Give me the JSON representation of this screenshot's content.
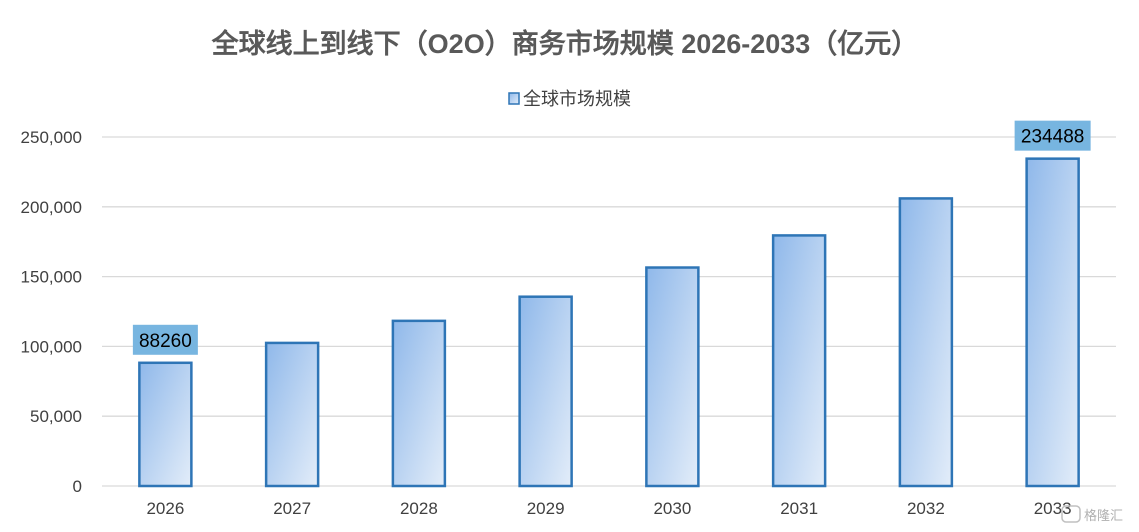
{
  "chart_data": {
    "type": "bar",
    "title": "全球线上到线下（O2O）商务市场规模 2026-2033（亿元）",
    "legend": {
      "position": "top-center",
      "entries": [
        "全球市场规模"
      ]
    },
    "categories": [
      "2026",
      "2027",
      "2028",
      "2029",
      "2030",
      "2031",
      "2032",
      "2033"
    ],
    "series": [
      {
        "name": "全球市场规模",
        "values": [
          88260,
          102500,
          118300,
          135600,
          156500,
          179500,
          206000,
          234488
        ]
      }
    ],
    "data_labels": [
      {
        "index": 0,
        "text": "88260"
      },
      {
        "index": 7,
        "text": "234488"
      }
    ],
    "y_ticks": [
      "0",
      "50,000",
      "100,000",
      "150,000",
      "200,000",
      "250,000"
    ],
    "ylim": [
      0,
      250000
    ],
    "xlabel": "",
    "ylabel": "",
    "grid": true,
    "colors": {
      "bar_top": "#8fb8ea",
      "bar_bottom": "#e3edf9",
      "bar_border": "#2e75b6",
      "label_bg": "#77b5e0",
      "grid": "#d9d9d9"
    }
  },
  "watermark": {
    "text": "格隆汇"
  }
}
